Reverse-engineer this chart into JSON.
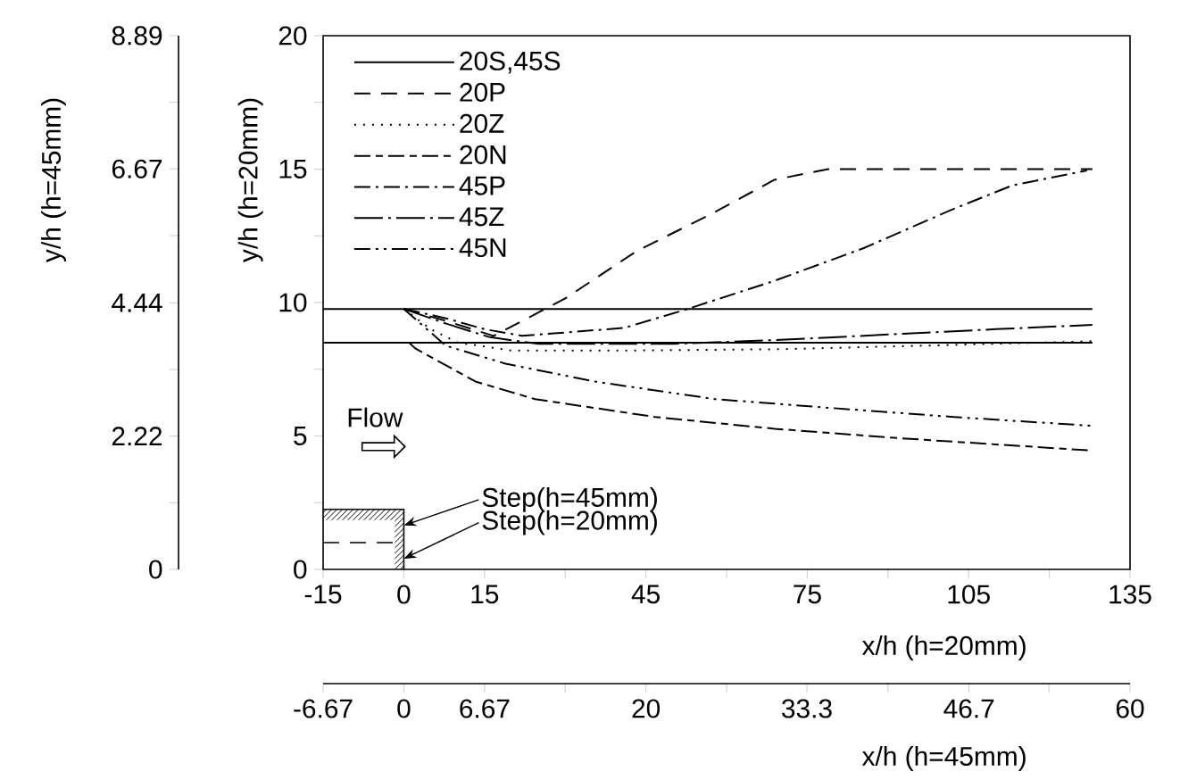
{
  "chart_data": {
    "type": "line",
    "xlabel": "x/h (h=20mm)",
    "ylabel": "y/h (h=20mm)",
    "y2label": "y/h (h=45mm)",
    "x2label": "x/h (h=45mm)",
    "xlim": [
      -15,
      135
    ],
    "ylim": [
      0,
      20
    ],
    "y2lim": [
      0,
      8.89
    ],
    "x2lim": [
      -6.67,
      60
    ],
    "xticks": [
      -15,
      0,
      15,
      {
        "value": 30,
        "label": null
      },
      45,
      {
        "value": 60,
        "label": null
      },
      75,
      {
        "value": 90,
        "label": null
      },
      105,
      {
        "value": 120,
        "label": null
      },
      135
    ],
    "yticks": [
      0,
      {
        "value": 2.5,
        "label": null
      },
      5,
      {
        "value": 7.5,
        "label": null
      },
      10,
      {
        "value": 12.5,
        "label": null
      },
      15,
      {
        "value": 17.5,
        "label": null
      },
      20
    ],
    "y2ticks": [
      0,
      {
        "value": 1.11,
        "label": null
      },
      2.22,
      {
        "value": 3.33,
        "label": null
      },
      4.44,
      {
        "value": 5.56,
        "label": null
      },
      6.67,
      {
        "value": 7.78,
        "label": null
      },
      8.89
    ],
    "x2ticks": [
      -6.67,
      0,
      6.67,
      {
        "value": 13.33,
        "label": null
      },
      20,
      {
        "value": 26.67,
        "label": null
      },
      33.3,
      {
        "value": 40,
        "label": null
      },
      46.7,
      {
        "value": 53.3,
        "label": null
      },
      60
    ],
    "legend": "top left",
    "grid": false,
    "marker": "none",
    "series": [
      {
        "name": "20S,45S",
        "color": "#000000",
        "line_style": "solid",
        "x": [
          -15,
          128
        ],
        "values": [
          9.76,
          9.76
        ]
      },
      {
        "color": "#000000",
        "line_style": "solid",
        "x": [
          -15,
          128
        ],
        "values": [
          8.49,
          8.49
        ]
      },
      {
        "name": "20P",
        "color": "#000000",
        "line_style": "dashed",
        "x": [
          0,
          8,
          16.7,
          30,
          43.3,
          56.7,
          68.9,
          78.9,
          128
        ],
        "values": [
          9.76,
          9.3,
          8.75,
          10.15,
          11.93,
          13.27,
          14.6,
          15,
          15
        ]
      },
      {
        "name": "20Z",
        "color": "#000000",
        "line_style": "dotted",
        "x": [
          0,
          5,
          10,
          20,
          40,
          70,
          100,
          128
        ],
        "values": [
          9.76,
          9.0,
          8.5,
          8.2,
          8.2,
          8.25,
          8.4,
          8.55
        ]
      },
      {
        "name": "20N",
        "color": "#000000",
        "line_style": "longdash-dash",
        "x": [
          1,
          2.2,
          13.3,
          24.4,
          46.7,
          68.9,
          91.1,
          128
        ],
        "values": [
          8.49,
          8.27,
          7.04,
          6.38,
          5.71,
          5.27,
          4.93,
          4.45
        ]
      },
      {
        "name": "45P",
        "color": "#000000",
        "line_style": "dashdot",
        "x": [
          0,
          8,
          15,
          22,
          41,
          52,
          69,
          85.5,
          102,
          113,
          127
        ],
        "values": [
          9.76,
          9.4,
          9.0,
          8.75,
          9.05,
          9.71,
          10.82,
          12.04,
          13.49,
          14.38,
          14.95
        ]
      },
      {
        "name": "45Z",
        "color": "#000000",
        "line_style": "longdash-dot",
        "x": [
          0,
          8,
          16,
          25,
          50,
          70,
          90,
          110,
          128
        ],
        "values": [
          9.76,
          9.2,
          8.7,
          8.45,
          8.45,
          8.6,
          8.8,
          9.0,
          9.16
        ]
      },
      {
        "name": "45N",
        "color": "#000000",
        "line_style": "dashdotdot",
        "x": [
          0,
          7.8,
          18.9,
          35.5,
          57.8,
          80,
          102.2,
          128
        ],
        "values": [
          9.76,
          8.38,
          7.71,
          7.04,
          6.38,
          6.04,
          5.71,
          5.38
        ]
      }
    ],
    "annotations": [
      "Flow",
      "Step(h=45mm)",
      "Step(h=20mm)"
    ]
  }
}
